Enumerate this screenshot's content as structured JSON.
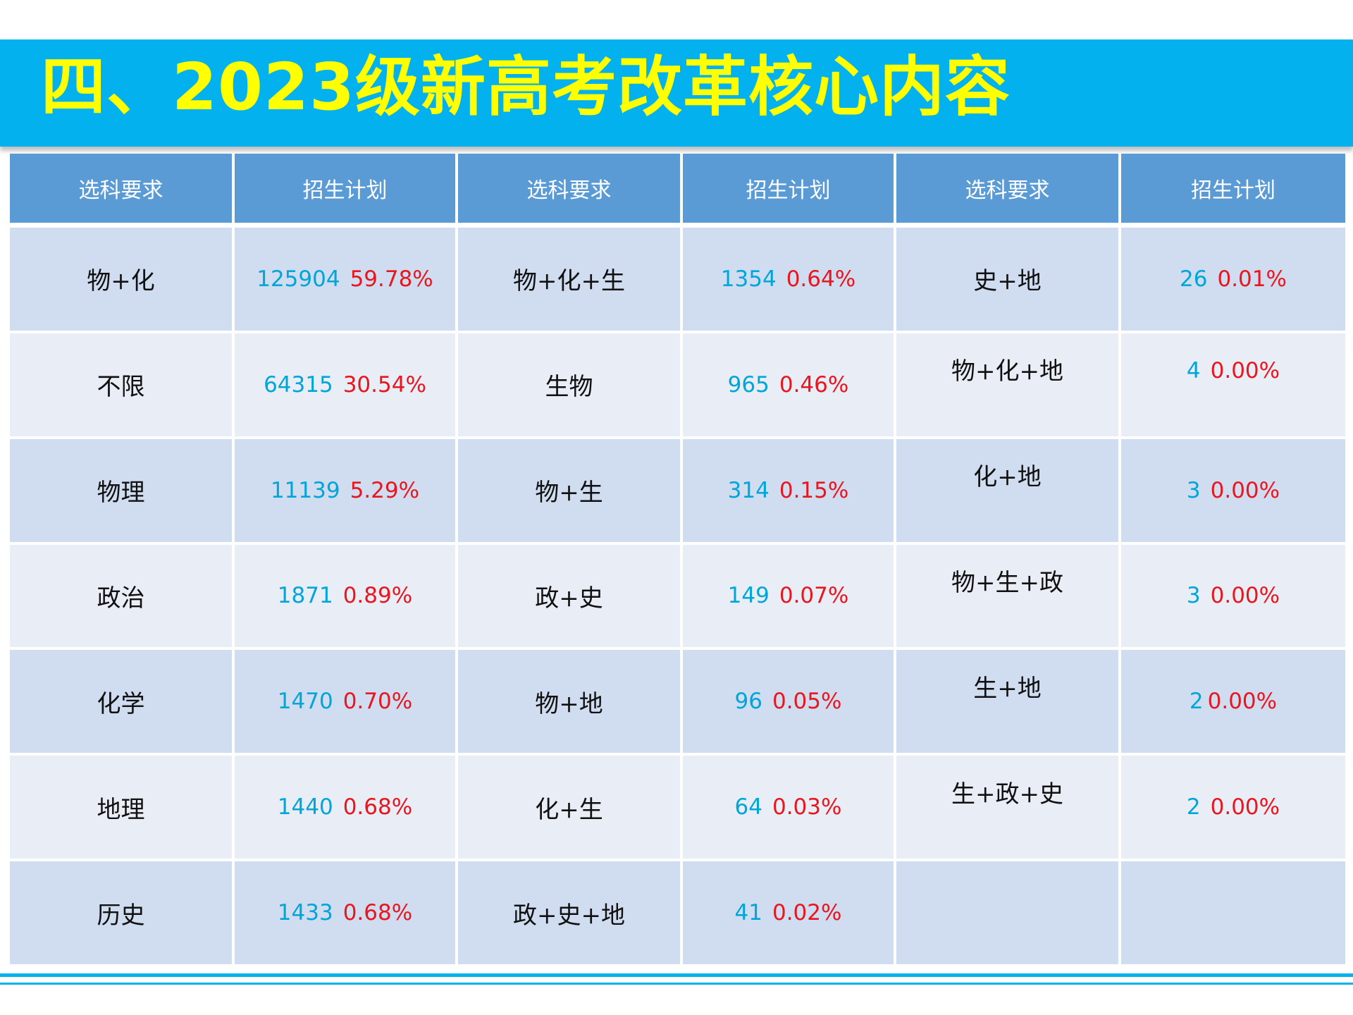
{
  "title": "四、2023级新高考改革核心内容",
  "headers": [
    "选科要求",
    "招生计划",
    "选科要求",
    "招生计划",
    "选科要求",
    "招生计划"
  ],
  "rows": [
    [
      {
        "subject": "物+化",
        "count": "125904",
        "pct": "59.78%"
      },
      {
        "subject": "物+化+生",
        "count": "1354",
        "pct": "0.64%"
      },
      {
        "subject": "史+地",
        "count": "26",
        "pct": "0.01%"
      }
    ],
    [
      {
        "subject": "不限",
        "count": "64315",
        "pct": "30.54%"
      },
      {
        "subject": "生物",
        "count": "965",
        "pct": "0.46%"
      },
      {
        "subject": "物+化+地",
        "count": "4",
        "pct": "0.00%"
      }
    ],
    [
      {
        "subject": "物理",
        "count": "11139",
        "pct": "5.29%"
      },
      {
        "subject": "物+生",
        "count": "314",
        "pct": "0.15%"
      },
      {
        "subject": "化+地",
        "count": "3",
        "pct": "0.00%"
      }
    ],
    [
      {
        "subject": "政治",
        "count": "1871",
        "pct": "0.89%"
      },
      {
        "subject": "政+史",
        "count": "149",
        "pct": "0.07%"
      },
      {
        "subject": "物+生+政",
        "count": "3",
        "pct": "0.00%"
      }
    ],
    [
      {
        "subject": "化学",
        "count": "1470",
        "pct": "0.70%"
      },
      {
        "subject": "物+地",
        "count": "96",
        "pct": "0.05%"
      },
      {
        "subject": "生+地",
        "count": "2",
        "pct": "0.00%"
      }
    ],
    [
      {
        "subject": "地理",
        "count": "1440",
        "pct": "0.68%"
      },
      {
        "subject": "化+生",
        "count": "64",
        "pct": "0.03%"
      },
      {
        "subject": "生+政+史",
        "count": "2",
        "pct": "0.00%"
      }
    ],
    [
      {
        "subject": "历史",
        "count": "1433",
        "pct": "0.68%"
      },
      {
        "subject": "政+史+地",
        "count": "41",
        "pct": "0.02%"
      },
      {
        "subject": "",
        "count": "",
        "pct": ""
      }
    ]
  ]
}
